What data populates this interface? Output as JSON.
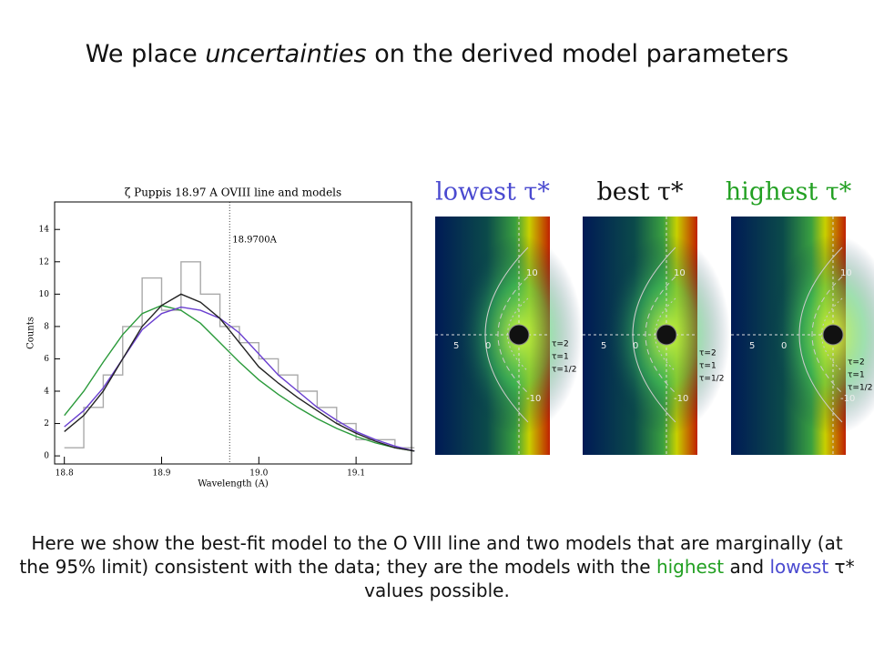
{
  "header": {
    "title_parts": [
      "We place ",
      "uncertainties",
      " on the derived model parameters"
    ]
  },
  "chart_data": {
    "type": "line",
    "title": "ζ Puppis 18.97 A OVIII line and models",
    "xlabel": "Wavelength (A)",
    "ylabel": "Counts",
    "x": [
      18.8,
      18.82,
      18.84,
      18.86,
      18.88,
      18.9,
      18.92,
      18.94,
      18.96,
      18.98,
      19.0,
      19.02,
      19.04,
      19.06,
      19.08,
      19.1,
      19.12,
      19.14,
      19.16
    ],
    "series": [
      {
        "color": "#aaaaaa",
        "step": true,
        "values": [
          0.5,
          3,
          5,
          8,
          11,
          9,
          12,
          10,
          8,
          7,
          6,
          5,
          4,
          3,
          2,
          1,
          1,
          0.5,
          0.5
        ]
      },
      {
        "color": "#2a9a3a",
        "values": [
          2.5,
          4,
          5.8,
          7.5,
          8.8,
          9.3,
          9,
          8.2,
          7,
          5.8,
          4.7,
          3.8,
          3,
          2.3,
          1.7,
          1.2,
          0.8,
          0.5,
          0.3
        ]
      },
      {
        "color": "#6a3fd0",
        "values": [
          1.8,
          2.8,
          4.2,
          6,
          7.8,
          8.8,
          9.2,
          9,
          8.5,
          7.6,
          6.3,
          5,
          4,
          3,
          2.2,
          1.5,
          1,
          0.6,
          0.3
        ]
      },
      {
        "color": "#222222",
        "values": [
          1.5,
          2.5,
          4,
          6,
          8,
          9.3,
          10,
          9.5,
          8.5,
          7,
          5.5,
          4.5,
          3.6,
          2.8,
          2,
          1.4,
          0.9,
          0.5,
          0.3
        ]
      }
    ],
    "xlim": [
      18.79,
      19.157
    ],
    "ylim": [
      -0.5,
      15.7
    ],
    "xticks": [
      18.8,
      18.9,
      {
        "value": 19,
        "label": "19.0"
      },
      19.1
    ],
    "yticks": [
      0,
      2,
      4,
      6,
      8,
      10,
      12,
      14
    ],
    "annotation": {
      "text": "18.9700A",
      "x": 18.97
    }
  },
  "panels": [
    {
      "label": "lowest τ*",
      "color": "#4a4ad0",
      "axis": [
        "10",
        "5",
        "0",
        "10",
        "-10"
      ],
      "contours": [
        "τ=2",
        "τ=1",
        "τ=1/2"
      ]
    },
    {
      "label": "best τ*",
      "color": "#111111",
      "axis": [
        "10",
        "5",
        "0",
        "10",
        "-10"
      ],
      "contours": [
        "τ=2",
        "τ=1",
        "τ=1/2"
      ]
    },
    {
      "label": "highest τ*",
      "color": "#22a022",
      "axis": [
        "10",
        "5",
        "0",
        "10",
        "-10"
      ],
      "contours": [
        "τ=2",
        "τ=1",
        "τ=1/2"
      ]
    }
  ],
  "caption": {
    "parts": [
      "Here we show the best-fit model to the O VIII line and two models that are marginally (at the 95% limit) consistent with the data; they are the models with the ",
      "highest",
      " and ",
      "lowest",
      " τ* values possible."
    ],
    "colors": [
      "#111111",
      "#22a022",
      "#111111",
      "#4a4ad0",
      "#111111"
    ]
  }
}
